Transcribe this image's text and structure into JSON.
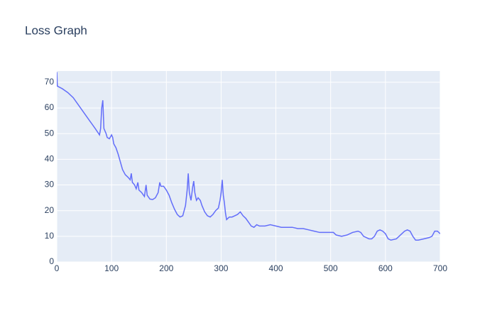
{
  "chart_data": {
    "type": "line",
    "title": "Loss Graph",
    "x": [
      0,
      1,
      10,
      20,
      30,
      40,
      50,
      60,
      70,
      78,
      80,
      82,
      84,
      86,
      88,
      90,
      92,
      96,
      100,
      102,
      104,
      108,
      112,
      116,
      120,
      125,
      130,
      134,
      136,
      138,
      142,
      145,
      148,
      150,
      155,
      160,
      163,
      165,
      170,
      175,
      180,
      185,
      188,
      190,
      195,
      200,
      205,
      210,
      215,
      220,
      225,
      230,
      235,
      238,
      240,
      242,
      245,
      248,
      250,
      252,
      255,
      258,
      262,
      265,
      270,
      275,
      280,
      285,
      290,
      295,
      298,
      300,
      302,
      304,
      306,
      308,
      310,
      315,
      320,
      325,
      330,
      335,
      340,
      345,
      350,
      355,
      360,
      365,
      370,
      380,
      390,
      400,
      410,
      420,
      430,
      440,
      450,
      460,
      470,
      480,
      490,
      500,
      505,
      510,
      520,
      530,
      540,
      550,
      555,
      560,
      570,
      575,
      580,
      585,
      590,
      595,
      600,
      605,
      610,
      620,
      630,
      635,
      640,
      645,
      650,
      655,
      660,
      670,
      680,
      685,
      690,
      695,
      700
    ],
    "series": [
      {
        "name": "loss",
        "color": "#636efa",
        "values": [
          74,
          68.5,
          67.5,
          66,
          64,
          61,
          58,
          55,
          52,
          49.5,
          52,
          60,
          63,
          52,
          51,
          50,
          48.5,
          48,
          49.5,
          48.5,
          46,
          44.5,
          42,
          39,
          36,
          34,
          33,
          32,
          34.5,
          31,
          30,
          28.5,
          31,
          28,
          27,
          25.5,
          30,
          26,
          24.5,
          24.3,
          25,
          27,
          31,
          29.5,
          29.5,
          28,
          26,
          23,
          20.5,
          18.5,
          17.5,
          18,
          22,
          28,
          34.5,
          27,
          24,
          29,
          31.5,
          27,
          24,
          25,
          24,
          22,
          19.5,
          18,
          17.5,
          18.5,
          20,
          21,
          24,
          27,
          32,
          26,
          23,
          19,
          16.5,
          17.5,
          17.5,
          18,
          18.5,
          19.5,
          18,
          17,
          15.5,
          14,
          13.5,
          14.5,
          14,
          14,
          14.5,
          14,
          13.5,
          13.5,
          13.5,
          13,
          13,
          12.5,
          12,
          11.5,
          11.5,
          11.5,
          11.5,
          10.5,
          10,
          10.5,
          11.5,
          12,
          11.5,
          10,
          9,
          9,
          10,
          12,
          12.5,
          12,
          11,
          9,
          8.5,
          9,
          11,
          12,
          12.5,
          12,
          10,
          8.5,
          8.5,
          9,
          9.5,
          10,
          12,
          12,
          11
        ]
      }
    ],
    "xlim": [
      0,
      700
    ],
    "ylim": [
      0,
      74.4
    ],
    "xticks": [
      0,
      100,
      200,
      300,
      400,
      500,
      600,
      700
    ],
    "yticks": [
      0,
      10,
      20,
      30,
      40,
      50,
      60,
      70
    ],
    "grid": true
  }
}
